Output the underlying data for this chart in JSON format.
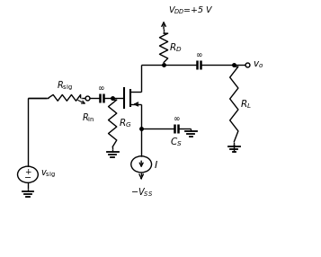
{
  "bg_color": "#ffffff",
  "line_color": "#000000",
  "figsize": [
    3.57,
    2.86
  ],
  "dpi": 100,
  "lw": 1.0
}
